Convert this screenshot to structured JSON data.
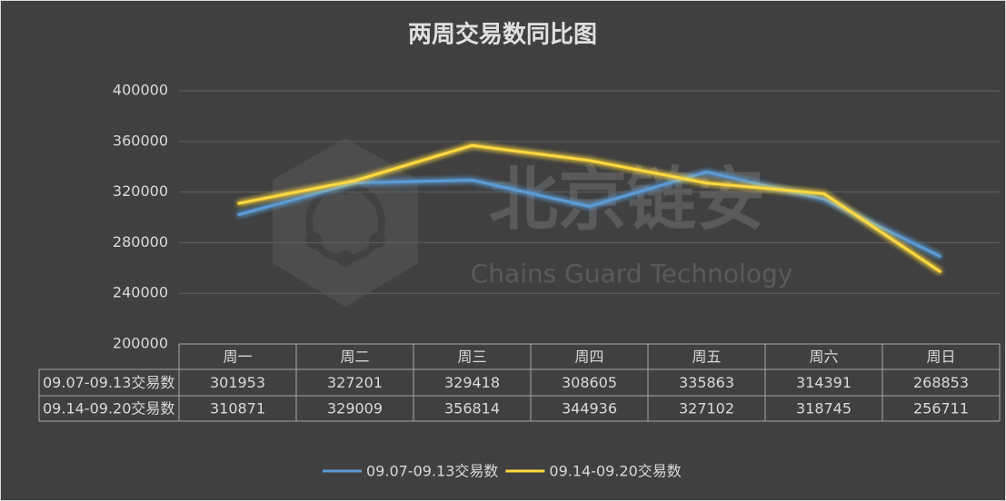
{
  "chart_data": {
    "type": "line",
    "title": "两周交易数同比图",
    "watermark": "北京链安",
    "watermark_subtitle": "Chains Guard Technology",
    "categories": [
      "周一",
      "周二",
      "周三",
      "周四",
      "周五",
      "周六",
      "周日"
    ],
    "series": [
      {
        "name": "09.07-09.13交易数",
        "color": "#5b9bd5",
        "values": [
          301953,
          327201,
          329418,
          308605,
          335863,
          314391,
          268853
        ]
      },
      {
        "name": "09.14-09.20交易数",
        "color": "#ffd941",
        "values": [
          310871,
          329009,
          356814,
          344936,
          327102,
          318745,
          256711
        ]
      }
    ],
    "ylim": [
      200000,
      400000
    ],
    "yticks": [
      200000,
      240000,
      280000,
      320000,
      360000,
      400000
    ],
    "grid": true,
    "legend": "bottom"
  }
}
